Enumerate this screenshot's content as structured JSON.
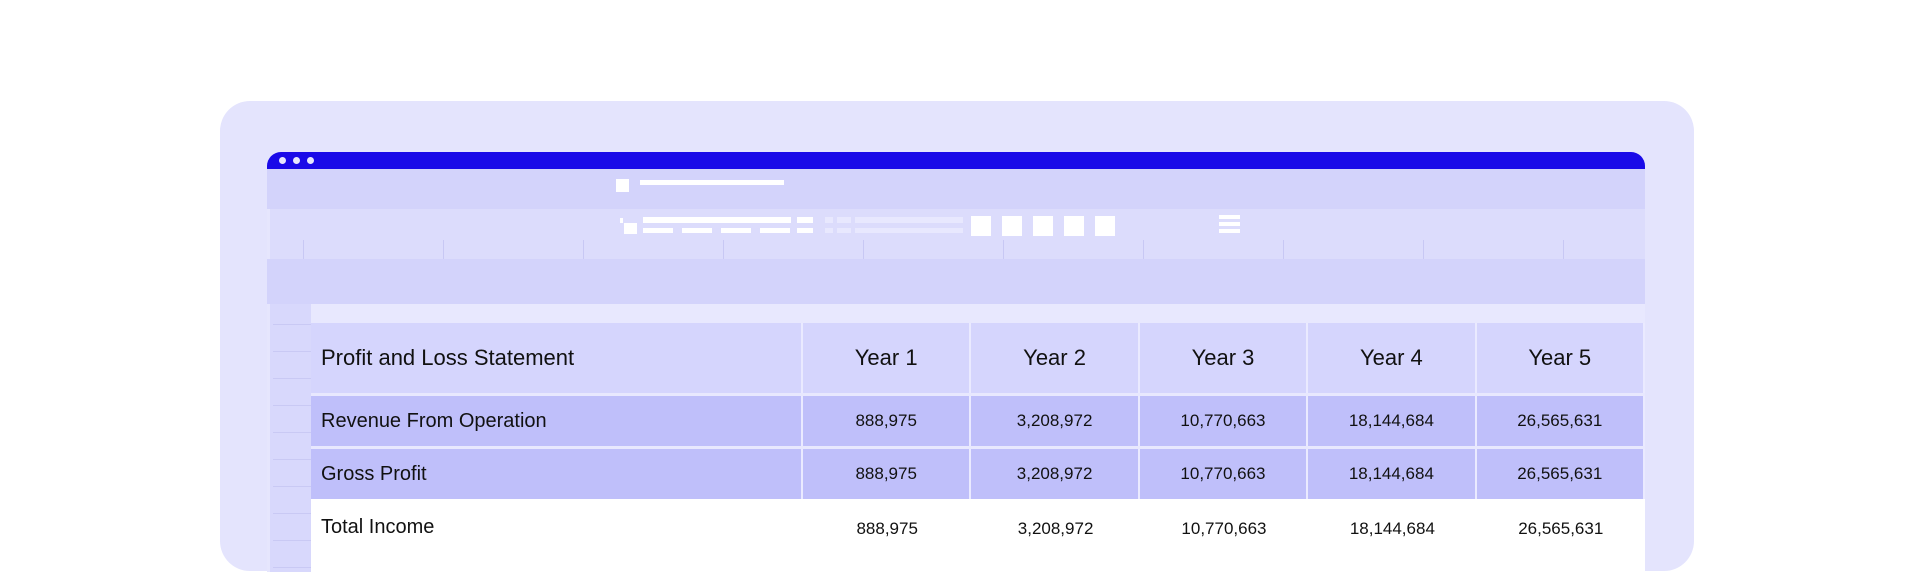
{
  "table": {
    "header": [
      "Profit and Loss Statement",
      "Year 1",
      "Year 2",
      "Year 3",
      "Year 4",
      "Year 5"
    ],
    "rows": [
      {
        "label": "Revenue From Operation",
        "values": [
          "888,975",
          "3,208,972",
          "10,770,663",
          "18,144,684",
          "26,565,631"
        ]
      },
      {
        "label": "Gross Profit",
        "values": [
          "888,975",
          "3,208,972",
          "10,770,663",
          "18,144,684",
          "26,565,631"
        ]
      },
      {
        "label": "Total Income",
        "values": [
          "888,975",
          "3,208,972",
          "10,770,663",
          "18,144,684",
          "26,565,631"
        ]
      }
    ]
  },
  "colors": {
    "titlebar": "#1a0ae8",
    "device": "#e4e4fd",
    "header_row": "#d5d5fd",
    "band_row": "#bfbffa"
  }
}
